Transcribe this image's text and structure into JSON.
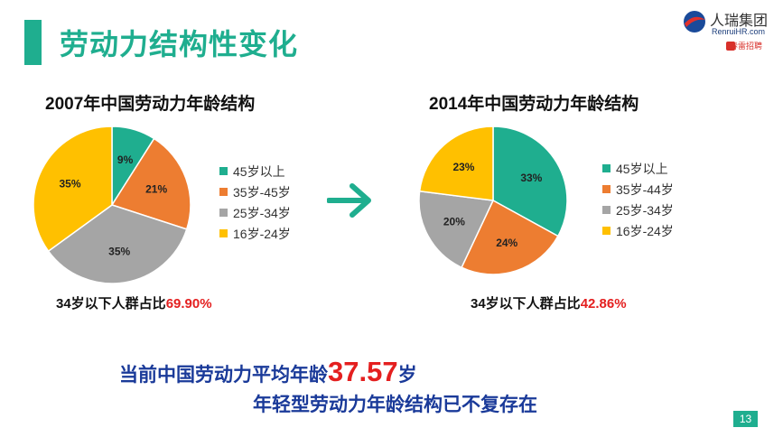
{
  "title": "劳动力结构性变化",
  "logo": {
    "company": "人瑞集团",
    "url": "RenruiHR.com",
    "sub": "春雷招聘"
  },
  "colors": {
    "accent": "#1fae8f",
    "highlight": "#e41f1f",
    "emphasis": "#1a3a99"
  },
  "chart_data": [
    {
      "type": "pie",
      "title": "2007年中国劳动力年龄结构",
      "slices": [
        {
          "label": "45岁以上",
          "value": 9,
          "value_label": "9%",
          "color": "#1fae8f"
        },
        {
          "label": "35岁-45岁",
          "value": 21,
          "value_label": "21%",
          "color": "#ed7d31"
        },
        {
          "label": "25岁-34岁",
          "value": 35,
          "value_label": "35%",
          "color": "#a5a5a5"
        },
        {
          "label": "16岁-24岁",
          "value": 35,
          "value_label": "35%",
          "color": "#ffc000"
        }
      ],
      "summary_prefix": "34岁以下人群占比",
      "summary_value": "69.90%"
    },
    {
      "type": "pie",
      "title": "2014年中国劳动力年龄结构",
      "slices": [
        {
          "label": "45岁以上",
          "value": 33,
          "value_label": "33%",
          "color": "#1fae8f"
        },
        {
          "label": "35岁-44岁",
          "value": 24,
          "value_label": "24%",
          "color": "#ed7d31"
        },
        {
          "label": "25岁-34岁",
          "value": 20,
          "value_label": "20%",
          "color": "#a5a5a5"
        },
        {
          "label": "16岁-24岁",
          "value": 23,
          "value_label": "23%",
          "color": "#ffc000"
        }
      ],
      "summary_prefix": "34岁以下人群占比",
      "summary_value": "42.86%"
    }
  ],
  "conclusion": {
    "line1_prefix": "当前中国劳动力平均年龄",
    "line1_value": "37.57",
    "line1_suffix": "岁",
    "line2": "年轻型劳动力年龄结构已不复存在"
  },
  "page_number": "13"
}
